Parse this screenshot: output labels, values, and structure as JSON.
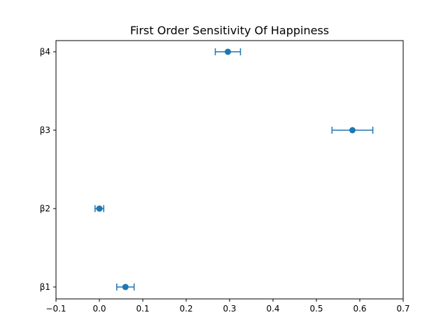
{
  "chart_data": {
    "type": "scatter",
    "title": "First Order Sensitivity Of Happiness",
    "xlabel": "",
    "ylabel": "",
    "xlim": [
      -0.1,
      0.7
    ],
    "x_ticks": [
      "−0.1",
      "0.0",
      "0.1",
      "0.2",
      "0.3",
      "0.4",
      "0.5",
      "0.6",
      "0.7"
    ],
    "x_tick_values": [
      -0.1,
      0.0,
      0.1,
      0.2,
      0.3,
      0.4,
      0.5,
      0.6,
      0.7
    ],
    "categories": [
      "β1",
      "β2",
      "β3",
      "β4"
    ],
    "points": [
      {
        "label": "β1",
        "value": 0.06,
        "err_low": 0.04,
        "err_high": 0.08
      },
      {
        "label": "β2",
        "value": 0.0,
        "err_low": -0.01,
        "err_high": 0.01
      },
      {
        "label": "β3",
        "value": 0.583,
        "err_low": 0.536,
        "err_high": 0.63
      },
      {
        "label": "β4",
        "value": 0.296,
        "err_low": 0.267,
        "err_high": 0.325
      }
    ],
    "grid": false,
    "color": "#1f77b4"
  }
}
